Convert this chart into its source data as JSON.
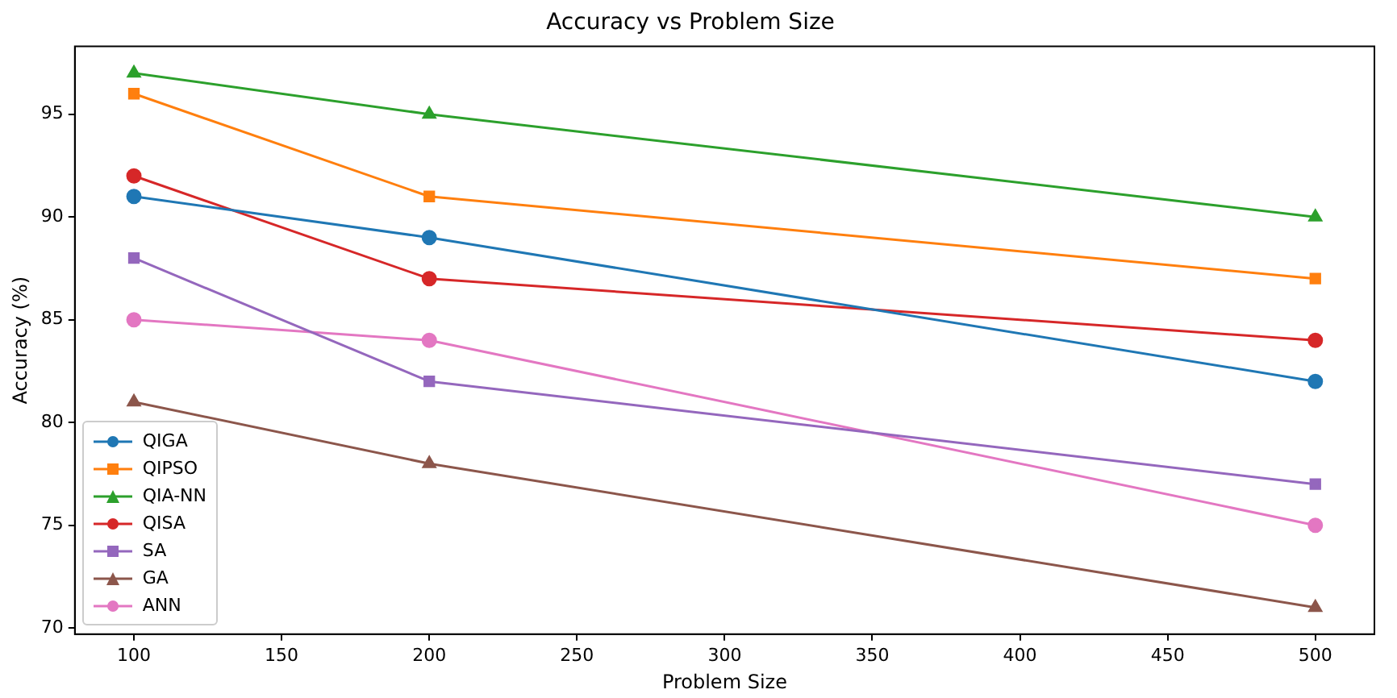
{
  "chart_data": {
    "type": "line",
    "title": "Accuracy vs Problem Size",
    "xlabel": "Problem Size",
    "ylabel": "Accuracy (%)",
    "x": [
      100,
      200,
      500
    ],
    "series": [
      {
        "name": "QIGA",
        "color": "#1f77b4",
        "marker": "circle",
        "values": [
          91,
          89,
          82
        ]
      },
      {
        "name": "QIPSO",
        "color": "#ff7f0e",
        "marker": "square",
        "values": [
          96,
          91,
          87
        ]
      },
      {
        "name": "QIA-NN",
        "color": "#2ca02c",
        "marker": "triangle",
        "values": [
          97,
          95,
          90
        ]
      },
      {
        "name": "QISA",
        "color": "#d62728",
        "marker": "circle",
        "values": [
          92,
          87,
          84
        ]
      },
      {
        "name": "SA",
        "color": "#9467bd",
        "marker": "square",
        "values": [
          88,
          82,
          77
        ]
      },
      {
        "name": "GA",
        "color": "#8c564b",
        "marker": "triangle",
        "values": [
          81,
          78,
          71
        ]
      },
      {
        "name": "ANN",
        "color": "#e377c2",
        "marker": "circle",
        "values": [
          85,
          84,
          75
        ]
      }
    ],
    "xlim": [
      80,
      520
    ],
    "xticks": [
      100,
      150,
      200,
      250,
      300,
      350,
      400,
      450,
      500
    ],
    "ylim": [
      69.7,
      98.3
    ],
    "yticks": [
      70,
      75,
      80,
      85,
      90,
      95
    ],
    "grid": false,
    "legend": "bottom left",
    "line_style": "solid"
  }
}
